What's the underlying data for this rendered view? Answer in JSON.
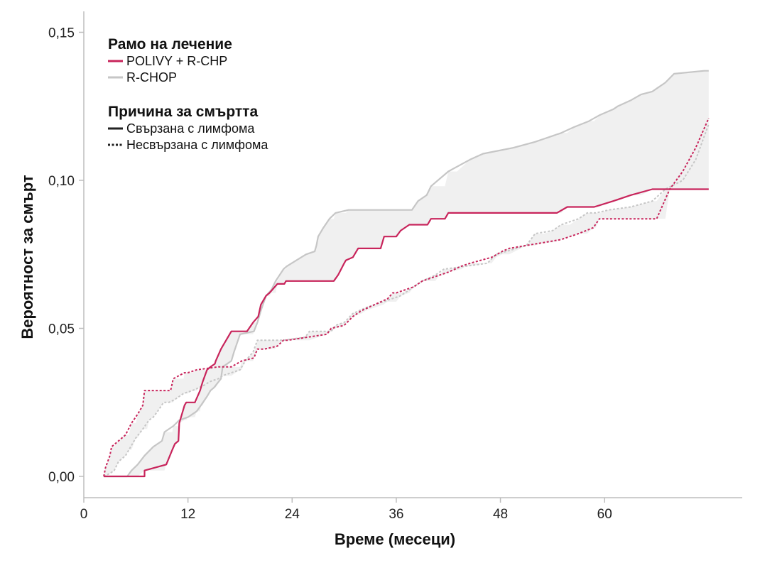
{
  "chart_data": {
    "type": "line",
    "title": "",
    "xlabel": "Време (месеци)",
    "ylabel": "Вероятност за смърт",
    "xlim": [
      0,
      76
    ],
    "ylim": [
      -0.0075,
      0.158
    ],
    "xticks": [
      0,
      12,
      24,
      36,
      48,
      60
    ],
    "xtick_labels": [
      "0",
      "12",
      "24",
      "36",
      "48",
      "60"
    ],
    "yticks": [
      0.0,
      0.05,
      0.1,
      0.15
    ],
    "ytick_labels": [
      "0,00",
      "0,05",
      "0,10",
      "0,15"
    ],
    "grid": false,
    "colors": {
      "polivy": "#c8245b",
      "rchop": "#c6c6c6",
      "band": "#f0f0f0",
      "axis": "#bdbdbd"
    },
    "legend": {
      "arm_title": "Рамо на лечение",
      "arm_items": [
        {
          "label": "POLIVY + R-CHP",
          "color": "#c8245b",
          "style": "solid"
        },
        {
          "label": "R-CHOP",
          "color": "#c6c6c6",
          "style": "solid"
        }
      ],
      "cause_title": "Причина за смъртта",
      "cause_items": [
        {
          "label": "Свързана с лимфома",
          "color": "#222222",
          "style": "solid"
        },
        {
          "label": "Несвързана с лимфома",
          "color": "#222222",
          "style": "dotted"
        }
      ],
      "placement": "top-left"
    },
    "series": [
      {
        "name": "POLIVY + R-CHP",
        "cause": "Свързана с лимфома",
        "color": "#c8245b",
        "style": "solid",
        "x": [
          2.3,
          7.0,
          7.0,
          9.5,
          10.2,
          10.5,
          10.9,
          11.0,
          11.6,
          11.8,
          12.8,
          13.4,
          13.7,
          14.2,
          14.6,
          15.1,
          15.2,
          15.8,
          16.0,
          16.4,
          17.0,
          18.8,
          19.5,
          20.1,
          20.4,
          21.0,
          21.4,
          22.3,
          23.1,
          23.3,
          28.8,
          29.3,
          30.0,
          30.2,
          31.0,
          31.6,
          34.2,
          34.6,
          36.0,
          36.5,
          37.5,
          39.6,
          40.0,
          41.6,
          42.0,
          43.0,
          54.5,
          55.7,
          58.8,
          61.0,
          63.0,
          65.5,
          72.0
        ],
        "y": [
          0.0,
          0.0,
          0.002,
          0.004,
          0.009,
          0.011,
          0.012,
          0.018,
          0.024,
          0.025,
          0.025,
          0.029,
          0.032,
          0.036,
          0.037,
          0.038,
          0.039,
          0.043,
          0.044,
          0.046,
          0.049,
          0.049,
          0.052,
          0.054,
          0.058,
          0.061,
          0.062,
          0.065,
          0.065,
          0.066,
          0.066,
          0.068,
          0.072,
          0.073,
          0.074,
          0.077,
          0.077,
          0.081,
          0.081,
          0.083,
          0.085,
          0.085,
          0.087,
          0.087,
          0.089,
          0.089,
          0.089,
          0.091,
          0.091,
          0.093,
          0.095,
          0.097,
          0.097
        ]
      },
      {
        "name": "R-CHOP",
        "cause": "Свързана с лимфома",
        "color": "#c6c6c6",
        "style": "solid",
        "x": [
          2.3,
          5.0,
          5.5,
          6.2,
          7.0,
          8.0,
          9.0,
          9.3,
          10.3,
          11.0,
          12.0,
          13.0,
          13.5,
          14.2,
          14.6,
          15.0,
          15.8,
          16.0,
          17.0,
          17.3,
          18.0,
          19.6,
          20.0,
          20.4,
          21.0,
          21.6,
          22.1,
          23.0,
          23.4,
          24.5,
          25.6,
          26.6,
          26.8,
          27.0,
          27.6,
          28.3,
          29.0,
          30.5,
          37.8,
          38.5,
          39.5,
          40.0,
          42.0,
          44.5,
          46.0,
          49.5,
          52.0,
          54.0,
          55.0,
          56.5,
          58.2,
          59.4,
          61.0,
          61.5,
          63.0,
          64.2,
          65.5,
          66.0,
          67.0,
          68.0,
          71.5,
          72.0
        ],
        "y": [
          0.0,
          0.0,
          0.002,
          0.004,
          0.007,
          0.01,
          0.012,
          0.015,
          0.017,
          0.019,
          0.02,
          0.022,
          0.024,
          0.027,
          0.029,
          0.03,
          0.033,
          0.037,
          0.039,
          0.042,
          0.048,
          0.049,
          0.052,
          0.056,
          0.061,
          0.063,
          0.066,
          0.07,
          0.071,
          0.073,
          0.075,
          0.076,
          0.078,
          0.081,
          0.084,
          0.087,
          0.089,
          0.09,
          0.09,
          0.093,
          0.095,
          0.098,
          0.103,
          0.107,
          0.109,
          0.111,
          0.113,
          0.115,
          0.116,
          0.118,
          0.12,
          0.122,
          0.124,
          0.125,
          0.127,
          0.129,
          0.13,
          0.131,
          0.133,
          0.136,
          0.137,
          0.137
        ]
      },
      {
        "name": "POLIVY + R-CHP",
        "cause": "Несвързана с лимфома",
        "color": "#c8245b",
        "style": "dotted",
        "x": [
          2.3,
          2.5,
          3.0,
          3.2,
          4.0,
          4.8,
          5.5,
          6.2,
          6.8,
          7.0,
          7.3,
          10.0,
          10.3,
          11.6,
          12.0,
          13.0,
          15.5,
          17.0,
          18.2,
          19.6,
          20.0,
          20.8,
          22.3,
          23.0,
          23.5,
          28.0,
          28.5,
          30.0,
          31.0,
          32.0,
          33.5,
          35.0,
          35.6,
          36.0,
          38.0,
          39.0,
          41.0,
          42.0,
          43.5,
          44.5,
          47.0,
          48.2,
          49.0,
          51.0,
          53.0,
          55.0,
          56.0,
          57.0,
          58.7,
          59.4,
          66.0,
          67.5,
          69.0,
          70.5,
          72.0
        ],
        "y": [
          0.0,
          0.003,
          0.007,
          0.01,
          0.012,
          0.014,
          0.018,
          0.021,
          0.024,
          0.029,
          0.029,
          0.029,
          0.033,
          0.035,
          0.035,
          0.036,
          0.037,
          0.037,
          0.039,
          0.04,
          0.043,
          0.043,
          0.044,
          0.046,
          0.046,
          0.048,
          0.05,
          0.051,
          0.054,
          0.056,
          0.058,
          0.06,
          0.062,
          0.062,
          0.064,
          0.066,
          0.068,
          0.069,
          0.071,
          0.072,
          0.074,
          0.076,
          0.077,
          0.078,
          0.079,
          0.08,
          0.081,
          0.082,
          0.084,
          0.087,
          0.087,
          0.097,
          0.103,
          0.111,
          0.121
        ]
      },
      {
        "name": "R-CHOP",
        "cause": "Несвързана с лимфома",
        "color": "#c6c6c6",
        "style": "dotted",
        "x": [
          2.3,
          3.0,
          3.5,
          4.0,
          4.8,
          5.2,
          6.0,
          6.8,
          7.5,
          8.0,
          8.5,
          9.2,
          9.8,
          10.5,
          11.5,
          12.5,
          13.3,
          14.0,
          14.5,
          15.5,
          16.0,
          18.0,
          18.6,
          19.5,
          20.0,
          22.0,
          23.0,
          25.5,
          26.0,
          28.5,
          29.0,
          30.0,
          31.0,
          32.5,
          34.5,
          36.5,
          37.5,
          38.0,
          39.0,
          40.5,
          41.5,
          44.0,
          46.5,
          47.5,
          51.0,
          52.0,
          54.0,
          55.0,
          57.0,
          58.0,
          59.0,
          60.5,
          63.0,
          65.5,
          67.0,
          69.0,
          70.5,
          72.0
        ],
        "y": [
          0.0,
          0.001,
          0.002,
          0.005,
          0.007,
          0.009,
          0.013,
          0.016,
          0.019,
          0.02,
          0.022,
          0.025,
          0.025,
          0.026,
          0.028,
          0.029,
          0.03,
          0.031,
          0.032,
          0.033,
          0.034,
          0.036,
          0.039,
          0.042,
          0.046,
          0.046,
          0.046,
          0.047,
          0.049,
          0.049,
          0.051,
          0.052,
          0.055,
          0.057,
          0.059,
          0.061,
          0.063,
          0.064,
          0.066,
          0.068,
          0.07,
          0.071,
          0.072,
          0.075,
          0.078,
          0.082,
          0.083,
          0.085,
          0.087,
          0.089,
          0.089,
          0.09,
          0.091,
          0.093,
          0.097,
          0.1,
          0.107,
          0.119
        ]
      }
    ]
  }
}
